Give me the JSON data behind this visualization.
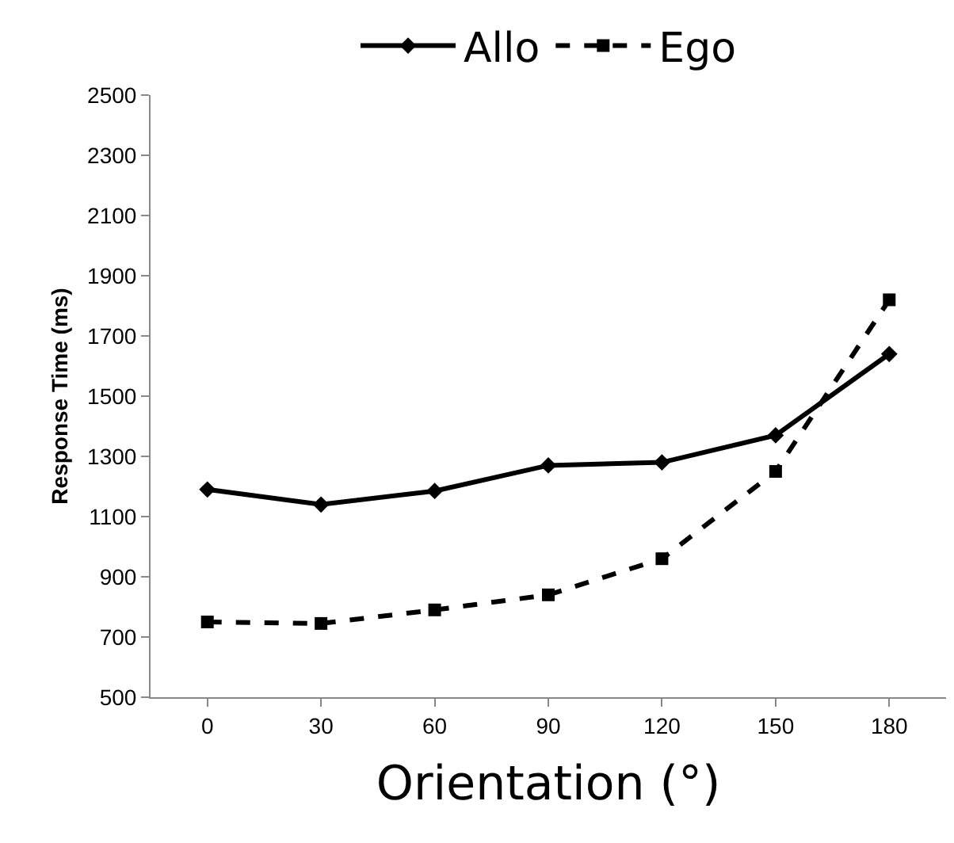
{
  "chart_data": {
    "type": "line",
    "xlabel": "Orientation (°)",
    "ylabel": "Response Time (ms)",
    "categories": [
      "0",
      "30",
      "60",
      "90",
      "120",
      "150",
      "180"
    ],
    "series": [
      {
        "name": "Allo",
        "color": "#000000",
        "marker": "diamond",
        "line_style": "solid",
        "values": [
          1190,
          1140,
          1185,
          1270,
          1280,
          1370,
          1640
        ]
      },
      {
        "name": "Ego",
        "color": "#000000",
        "marker": "square",
        "line_style": "dashed",
        "values": [
          750,
          745,
          790,
          840,
          960,
          1250,
          1820
        ]
      }
    ],
    "ylim": [
      500,
      2500
    ],
    "yticks": [
      500,
      700,
      900,
      1100,
      1300,
      1500,
      1700,
      1900,
      2100,
      2300,
      2500
    ],
    "grid": false,
    "legend": "top"
  }
}
